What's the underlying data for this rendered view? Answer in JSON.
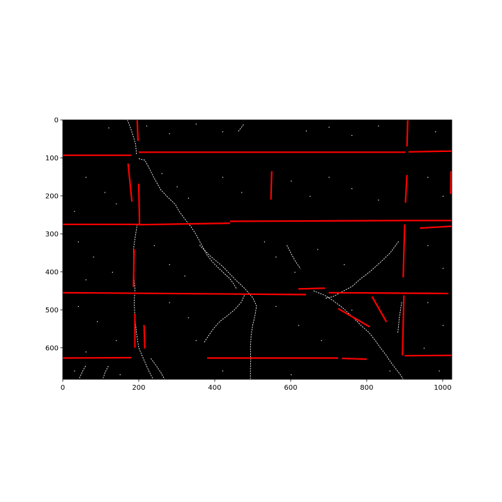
{
  "chart_data": {
    "type": "scatter",
    "xlim": [
      0,
      1024
    ],
    "ylim": [
      683,
      0
    ],
    "xticks": [
      "0",
      "200",
      "400",
      "600",
      "800",
      "1000"
    ],
    "yticks": [
      "0",
      "100",
      "200",
      "300",
      "400",
      "500",
      "600"
    ],
    "grid": false,
    "background_color": "#000000",
    "line_color": "#ff0000",
    "edge_color": "#ffffff",
    "edge_paths": [
      [
        [
          170,
          0
        ],
        [
          178,
          20
        ],
        [
          186,
          45
        ],
        [
          192,
          65
        ],
        [
          194,
          90
        ]
      ],
      [
        [
          200,
          102
        ],
        [
          216,
          106
        ],
        [
          228,
          128
        ],
        [
          240,
          152
        ],
        [
          258,
          184
        ],
        [
          278,
          205
        ],
        [
          296,
          222
        ],
        [
          306,
          240
        ],
        [
          322,
          262
        ],
        [
          338,
          282
        ],
        [
          350,
          300
        ],
        [
          366,
          330
        ],
        [
          380,
          356
        ],
        [
          396,
          376
        ],
        [
          412,
          392
        ],
        [
          426,
          405
        ],
        [
          440,
          418
        ],
        [
          450,
          432
        ],
        [
          458,
          446
        ]
      ],
      [
        [
          196,
          275
        ],
        [
          192,
          300
        ],
        [
          186,
          340
        ],
        [
          186,
          380
        ],
        [
          188,
          420
        ],
        [
          190,
          445
        ],
        [
          188,
          480
        ],
        [
          190,
          520
        ],
        [
          194,
          560
        ],
        [
          200,
          600
        ],
        [
          212,
          628
        ],
        [
          226,
          660
        ],
        [
          238,
          683
        ]
      ],
      [
        [
          232,
          628
        ],
        [
          248,
          650
        ],
        [
          260,
          668
        ],
        [
          268,
          683
        ]
      ],
      [
        [
          360,
          330
        ],
        [
          390,
          360
        ],
        [
          420,
          385
        ],
        [
          454,
          420
        ],
        [
          480,
          445
        ],
        [
          500,
          468
        ],
        [
          510,
          490
        ],
        [
          506,
          515
        ],
        [
          500,
          540
        ],
        [
          496,
          565
        ],
        [
          494,
          600
        ],
        [
          495,
          630
        ],
        [
          494,
          660
        ],
        [
          494,
          683
        ]
      ],
      [
        [
          884,
          320
        ],
        [
          862,
          350
        ],
        [
          836,
          375
        ],
        [
          808,
          400
        ],
        [
          782,
          420
        ],
        [
          762,
          438
        ],
        [
          736,
          452
        ],
        [
          712,
          465
        ],
        [
          690,
          470
        ]
      ],
      [
        [
          478,
          462
        ],
        [
          470,
          480
        ],
        [
          452,
          500
        ],
        [
          434,
          515
        ],
        [
          414,
          530
        ],
        [
          398,
          548
        ],
        [
          386,
          565
        ],
        [
          372,
          586
        ]
      ],
      [
        [
          660,
          450
        ],
        [
          690,
          462
        ],
        [
          712,
          476
        ],
        [
          738,
          496
        ],
        [
          764,
          520
        ],
        [
          786,
          542
        ],
        [
          806,
          560
        ],
        [
          822,
          580
        ],
        [
          836,
          600
        ],
        [
          850,
          618
        ],
        [
          862,
          636
        ],
        [
          876,
          655
        ],
        [
          888,
          670
        ],
        [
          896,
          683
        ]
      ],
      [
        [
          60,
          648
        ],
        [
          52,
          662
        ],
        [
          44,
          680
        ]
      ],
      [
        [
          120,
          648
        ],
        [
          112,
          664
        ],
        [
          106,
          680
        ]
      ],
      [
        [
          476,
          12
        ],
        [
          470,
          20
        ],
        [
          462,
          30
        ]
      ],
      [
        [
          892,
          480
        ],
        [
          886,
          520
        ],
        [
          882,
          560
        ]
      ],
      [
        [
          590,
          330
        ],
        [
          600,
          350
        ],
        [
          612,
          372
        ],
        [
          626,
          392
        ]
      ]
    ],
    "detected_lines": [
      [
        [
          0,
          93
        ],
        [
          180,
          93
        ]
      ],
      [
        [
          196,
          0
        ],
        [
          198,
          55
        ]
      ],
      [
        [
          200,
          85
        ],
        [
          600,
          85
        ]
      ],
      [
        [
          600,
          85
        ],
        [
          902,
          85
        ]
      ],
      [
        [
          910,
          84
        ],
        [
          1024,
          82
        ]
      ],
      [
        [
          908,
          0
        ],
        [
          906,
          70
        ]
      ],
      [
        [
          172,
          115
        ],
        [
          182,
          215
        ]
      ],
      [
        [
          200,
          168
        ],
        [
          202,
          275
        ]
      ],
      [
        [
          0,
          275
        ],
        [
          200,
          275
        ]
      ],
      [
        [
          200,
          276
        ],
        [
          440,
          272
        ]
      ],
      [
        [
          440,
          267
        ],
        [
          900,
          265
        ]
      ],
      [
        [
          900,
          265
        ],
        [
          1024,
          265
        ]
      ],
      [
        [
          550,
          135
        ],
        [
          548,
          210
        ]
      ],
      [
        [
          906,
          145
        ],
        [
          902,
          218
        ]
      ],
      [
        [
          1022,
          135
        ],
        [
          1021,
          195
        ]
      ],
      [
        [
          940,
          285
        ],
        [
          1024,
          280
        ]
      ],
      [
        [
          900,
          275
        ],
        [
          896,
          415
        ]
      ],
      [
        [
          188,
          340
        ],
        [
          186,
          440
        ]
      ],
      [
        [
          0,
          455
        ],
        [
          640,
          460
        ]
      ],
      [
        [
          620,
          445
        ],
        [
          690,
          443
        ]
      ],
      [
        [
          700,
          455
        ],
        [
          1015,
          457
        ]
      ],
      [
        [
          814,
          465
        ],
        [
          852,
          532
        ]
      ],
      [
        [
          725,
          497
        ],
        [
          808,
          545
        ]
      ],
      [
        [
          190,
          510
        ],
        [
          190,
          600
        ]
      ],
      [
        [
          214,
          540
        ],
        [
          216,
          602
        ]
      ],
      [
        [
          0,
          627
        ],
        [
          180,
          626
        ]
      ],
      [
        [
          380,
          627
        ],
        [
          725,
          627
        ]
      ],
      [
        [
          735,
          628
        ],
        [
          800,
          630
        ]
      ],
      [
        [
          898,
          462
        ],
        [
          894,
          620
        ]
      ],
      [
        [
          900,
          621
        ],
        [
          1024,
          620
        ]
      ]
    ],
    "edge_points": [
      [
        120,
        20
      ],
      [
        220,
        15
      ],
      [
        280,
        35
      ],
      [
        350,
        10
      ],
      [
        420,
        30
      ],
      [
        640,
        28
      ],
      [
        700,
        18
      ],
      [
        760,
        40
      ],
      [
        830,
        15
      ],
      [
        980,
        30
      ],
      [
        60,
        150
      ],
      [
        110,
        190
      ],
      [
        140,
        220
      ],
      [
        30,
        240
      ],
      [
        260,
        140
      ],
      [
        300,
        175
      ],
      [
        330,
        205
      ],
      [
        420,
        150
      ],
      [
        470,
        190
      ],
      [
        600,
        160
      ],
      [
        650,
        200
      ],
      [
        700,
        150
      ],
      [
        760,
        180
      ],
      [
        830,
        210
      ],
      [
        960,
        150
      ],
      [
        1000,
        200
      ],
      [
        40,
        320
      ],
      [
        80,
        360
      ],
      [
        130,
        400
      ],
      [
        60,
        420
      ],
      [
        240,
        330
      ],
      [
        280,
        380
      ],
      [
        320,
        410
      ],
      [
        530,
        320
      ],
      [
        560,
        360
      ],
      [
        610,
        400
      ],
      [
        670,
        340
      ],
      [
        740,
        380
      ],
      [
        960,
        330
      ],
      [
        1000,
        390
      ],
      [
        40,
        490
      ],
      [
        90,
        530
      ],
      [
        140,
        580
      ],
      [
        60,
        610
      ],
      [
        280,
        480
      ],
      [
        330,
        520
      ],
      [
        350,
        580
      ],
      [
        560,
        490
      ],
      [
        620,
        540
      ],
      [
        680,
        580
      ],
      [
        760,
        500
      ],
      [
        960,
        480
      ],
      [
        1000,
        540
      ],
      [
        950,
        600
      ],
      [
        30,
        660
      ],
      [
        150,
        670
      ],
      [
        420,
        660
      ],
      [
        600,
        670
      ],
      [
        860,
        660
      ],
      [
        990,
        660
      ]
    ]
  }
}
